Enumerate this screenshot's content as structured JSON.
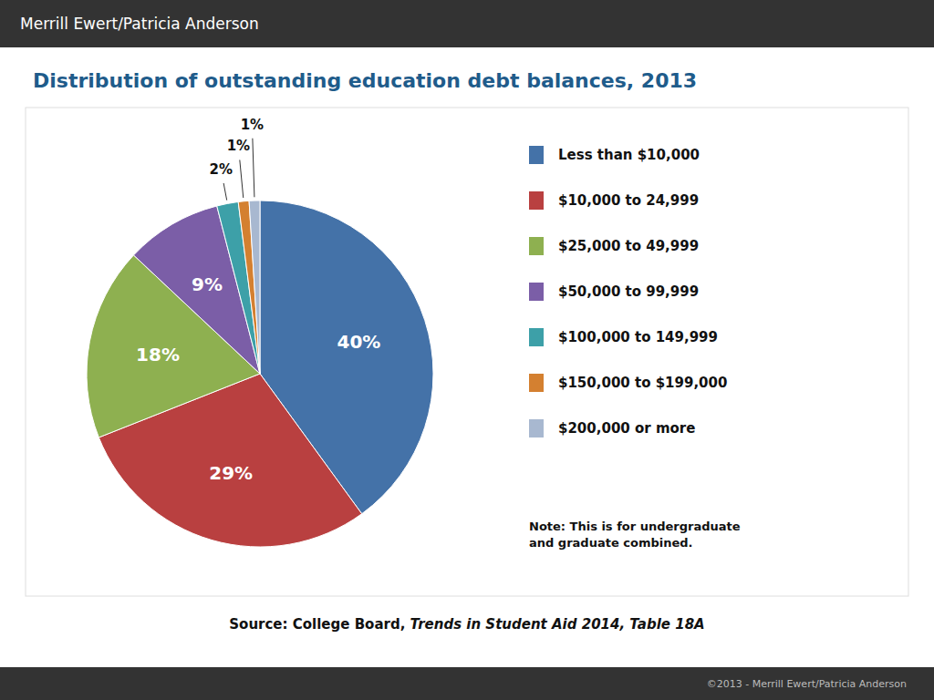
{
  "chart_data": {
    "type": "pie",
    "title": "Distribution of outstanding education debt balances, 2013",
    "categories": [
      "Less than $10,000",
      "$10,000 to 24,999",
      "$25,000 to 49,999",
      "$50,000 to 99,999",
      "$100,000 to 149,999",
      "$150,000 to $199,000",
      "$200,000 or more"
    ],
    "values": [
      40,
      29,
      18,
      9,
      2,
      1,
      1
    ],
    "value_labels": [
      "40%",
      "29%",
      "18%",
      "9%",
      "2%",
      "1%",
      "1%"
    ],
    "colors": [
      "#4472A8",
      "#B94040",
      "#8EB050",
      "#7B5EA7",
      "#3DA0A8",
      "#D48030",
      "#A8B8D0"
    ],
    "data_labels": true,
    "legend": "right",
    "annotations": [
      "Merrill Ewert/Patricia Anderson",
      "Source: College Board, ",
      "Trends in Student Aid 2014, Table 18A",
      "Note: This is for undergraduate\nand graduate combined.",
      "©2013 - Merrill Ewert/Patricia Anderson"
    ]
  }
}
